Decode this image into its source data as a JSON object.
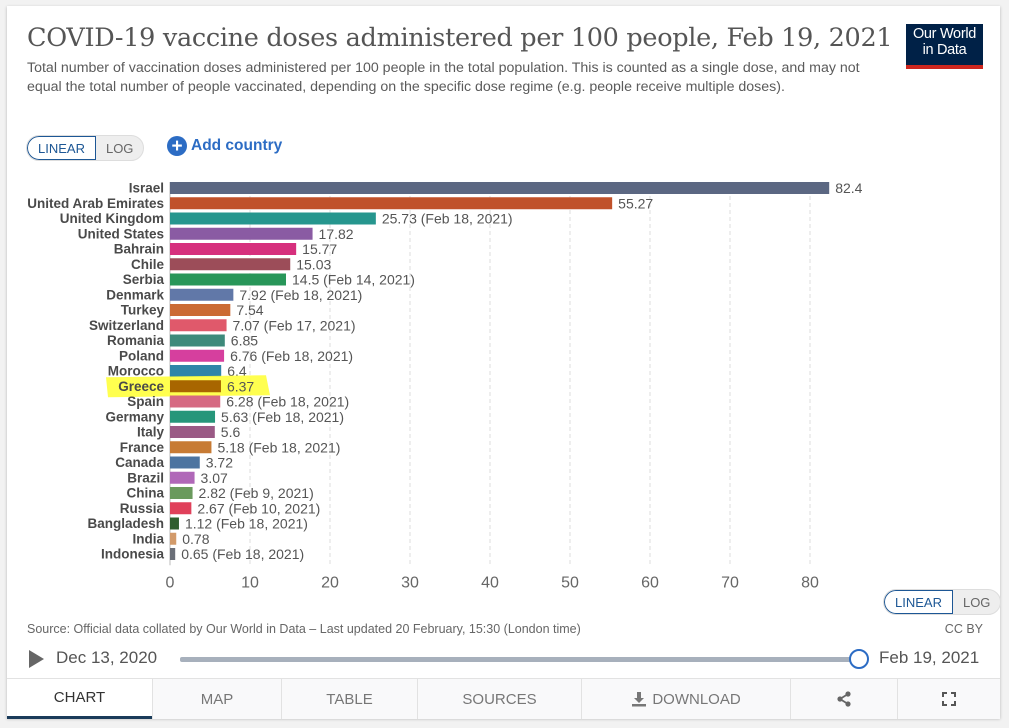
{
  "header": {
    "title": "COVID-19 vaccine doses administered per 100 people, Feb 19, 2021",
    "subtitle": "Total number of vaccination doses administered per 100 people in the total population. This is counted as a single dose, and may not equal the total number of people vaccinated, depending on the specific dose regime (e.g. people receive multiple doses).",
    "logo_line1": "Our World",
    "logo_line2": "in Data"
  },
  "controls": {
    "linear_label": "LINEAR",
    "log_label": "LOG",
    "add_country_label": "Add country",
    "selected_scale": "LINEAR"
  },
  "chart_data": {
    "type": "bar",
    "orientation": "horizontal",
    "title": "COVID-19 vaccine doses administered per 100 people, Feb 19, 2021",
    "xlabel": "",
    "ylabel": "",
    "xlim": [
      0,
      85
    ],
    "xticks": [
      0,
      10,
      20,
      30,
      40,
      50,
      60,
      70,
      80
    ],
    "grid": "vertical dashed",
    "highlighted": "Greece",
    "highlight_color": "#ffff3c",
    "bars": [
      {
        "country": "Israel",
        "value": 82.4,
        "note": "",
        "color": "#5b6782"
      },
      {
        "country": "United Arab Emirates",
        "value": 55.27,
        "note": "",
        "color": "#c0512a"
      },
      {
        "country": "United Kingdom",
        "value": 25.73,
        "note": "(Feb 18, 2021)",
        "color": "#26968e"
      },
      {
        "country": "United States",
        "value": 17.82,
        "note": "",
        "color": "#8a5ba3"
      },
      {
        "country": "Bahrain",
        "value": 15.77,
        "note": "",
        "color": "#d6307d"
      },
      {
        "country": "Chile",
        "value": 15.03,
        "note": "",
        "color": "#9c4d59"
      },
      {
        "country": "Serbia",
        "value": 14.5,
        "note": "(Feb 14, 2021)",
        "color": "#289659"
      },
      {
        "country": "Denmark",
        "value": 7.92,
        "note": "(Feb 18, 2021)",
        "color": "#6178a8"
      },
      {
        "country": "Turkey",
        "value": 7.54,
        "note": "",
        "color": "#cb6b34"
      },
      {
        "country": "Switzerland",
        "value": 7.07,
        "note": "(Feb 17, 2021)",
        "color": "#e0596b"
      },
      {
        "country": "Romania",
        "value": 6.85,
        "note": "",
        "color": "#3e8a7b"
      },
      {
        "country": "Poland",
        "value": 6.76,
        "note": "(Feb 18, 2021)",
        "color": "#d63f9e"
      },
      {
        "country": "Morocco",
        "value": 6.4,
        "note": "",
        "color": "#2f85a8"
      },
      {
        "country": "Greece",
        "value": 6.37,
        "note": "",
        "color": "#a86600"
      },
      {
        "country": "Spain",
        "value": 6.28,
        "note": "(Feb 18, 2021)",
        "color": "#d66982"
      },
      {
        "country": "Germany",
        "value": 5.63,
        "note": "(Feb 18, 2021)",
        "color": "#26967a"
      },
      {
        "country": "Italy",
        "value": 5.6,
        "note": "",
        "color": "#9a5a85"
      },
      {
        "country": "France",
        "value": 5.18,
        "note": "(Feb 18, 2021)",
        "color": "#c77b34"
      },
      {
        "country": "Canada",
        "value": 3.72,
        "note": "",
        "color": "#4c74a0"
      },
      {
        "country": "Brazil",
        "value": 3.07,
        "note": "",
        "color": "#b068b8"
      },
      {
        "country": "China",
        "value": 2.82,
        "note": "(Feb 9, 2021)",
        "color": "#6a9a5d"
      },
      {
        "country": "Russia",
        "value": 2.67,
        "note": "(Feb 10, 2021)",
        "color": "#e0405a"
      },
      {
        "country": "Bangladesh",
        "value": 1.12,
        "note": "(Feb 18, 2021)",
        "color": "#2f5e2e"
      },
      {
        "country": "India",
        "value": 0.78,
        "note": "",
        "color": "#d29a6a"
      },
      {
        "country": "Indonesia",
        "value": 0.65,
        "note": "(Feb 18, 2021)",
        "color": "#6b6f78"
      }
    ]
  },
  "footer": {
    "source": "Source: Official data collated by Our World in Data – Last updated 20 February, 15:30 (London time)",
    "license": "CC BY",
    "timeline_start": "Dec 13, 2020",
    "timeline_end": "Feb 19, 2021",
    "timeline_position": 1.0
  },
  "tabs": [
    {
      "label": "CHART",
      "icon": "",
      "active": true
    },
    {
      "label": "MAP",
      "icon": "",
      "active": false
    },
    {
      "label": "TABLE",
      "icon": "",
      "active": false
    },
    {
      "label": "SOURCES",
      "icon": "",
      "active": false
    },
    {
      "label": "DOWNLOAD",
      "icon": "download-icon",
      "active": false
    },
    {
      "label": "",
      "icon": "share-icon",
      "active": false
    },
    {
      "label": "",
      "icon": "fullscreen-icon",
      "active": false
    }
  ]
}
